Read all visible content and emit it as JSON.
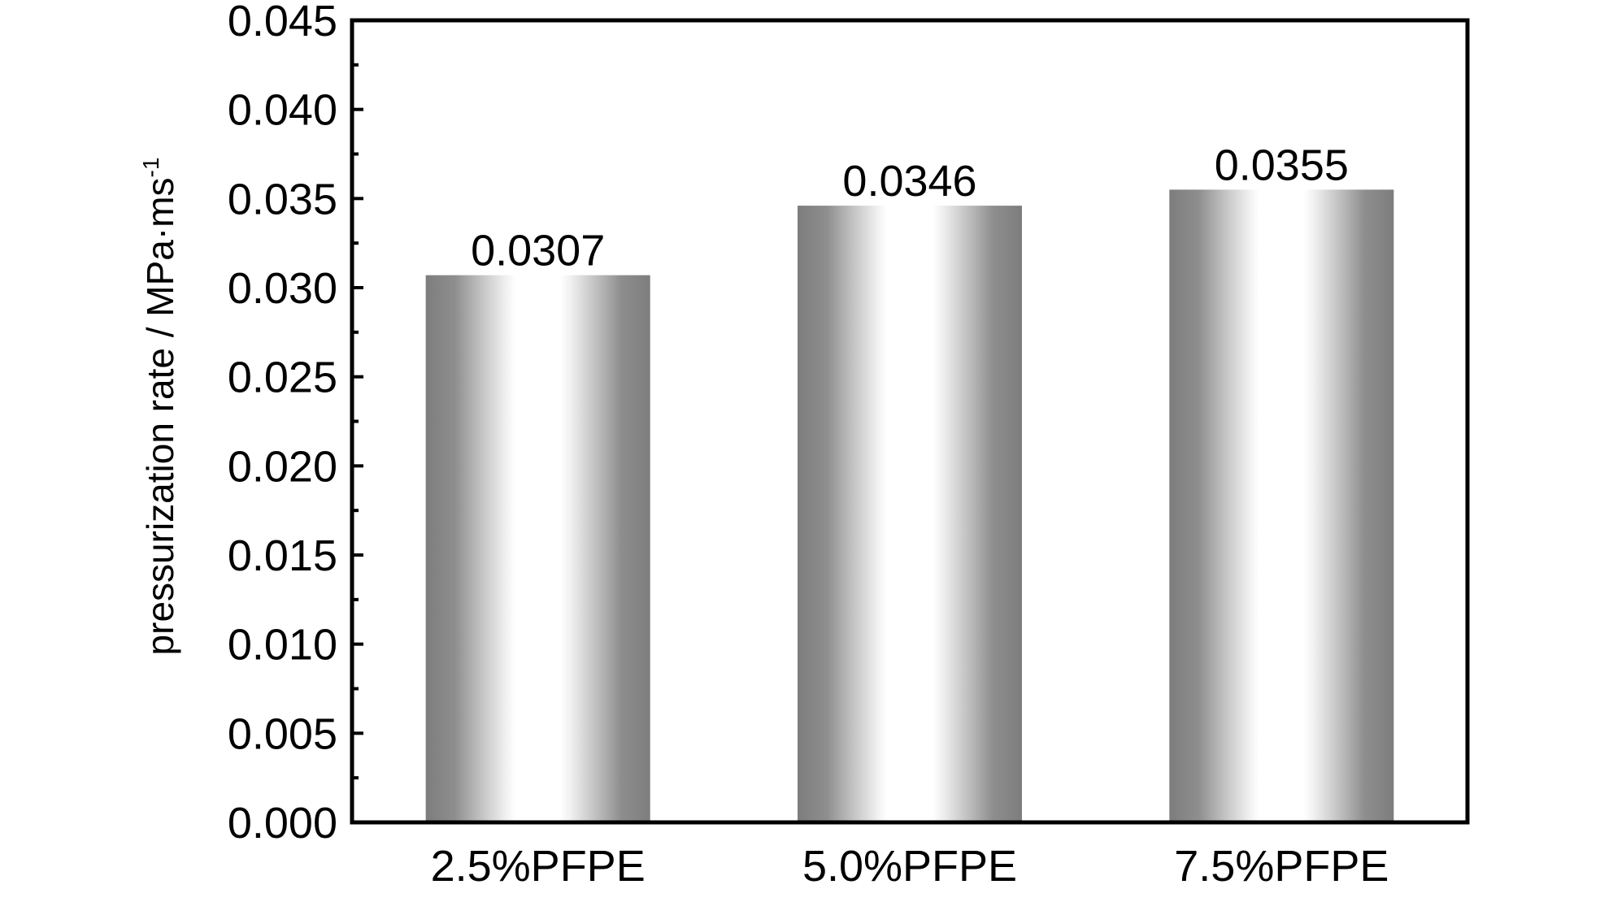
{
  "chart_data": {
    "type": "bar",
    "title": "",
    "xlabel": "",
    "ylabel": "pressurization rate / MPa·ms",
    "ylabel_superscript": "-1",
    "categories": [
      "2.5%PFPE",
      "5.0%PFPE",
      "7.5%PFPE"
    ],
    "values": [
      0.0307,
      0.0346,
      0.0355
    ],
    "value_labels": [
      "0.0307",
      "0.0346",
      "0.0355"
    ],
    "ylim": [
      0,
      0.045
    ],
    "yticks": [
      "0.000",
      "0.005",
      "0.010",
      "0.015",
      "0.020",
      "0.025",
      "0.030",
      "0.035",
      "0.040",
      "0.045"
    ],
    "grid": false,
    "legend": "none",
    "bar_style": "grey cylindrical gradient"
  }
}
